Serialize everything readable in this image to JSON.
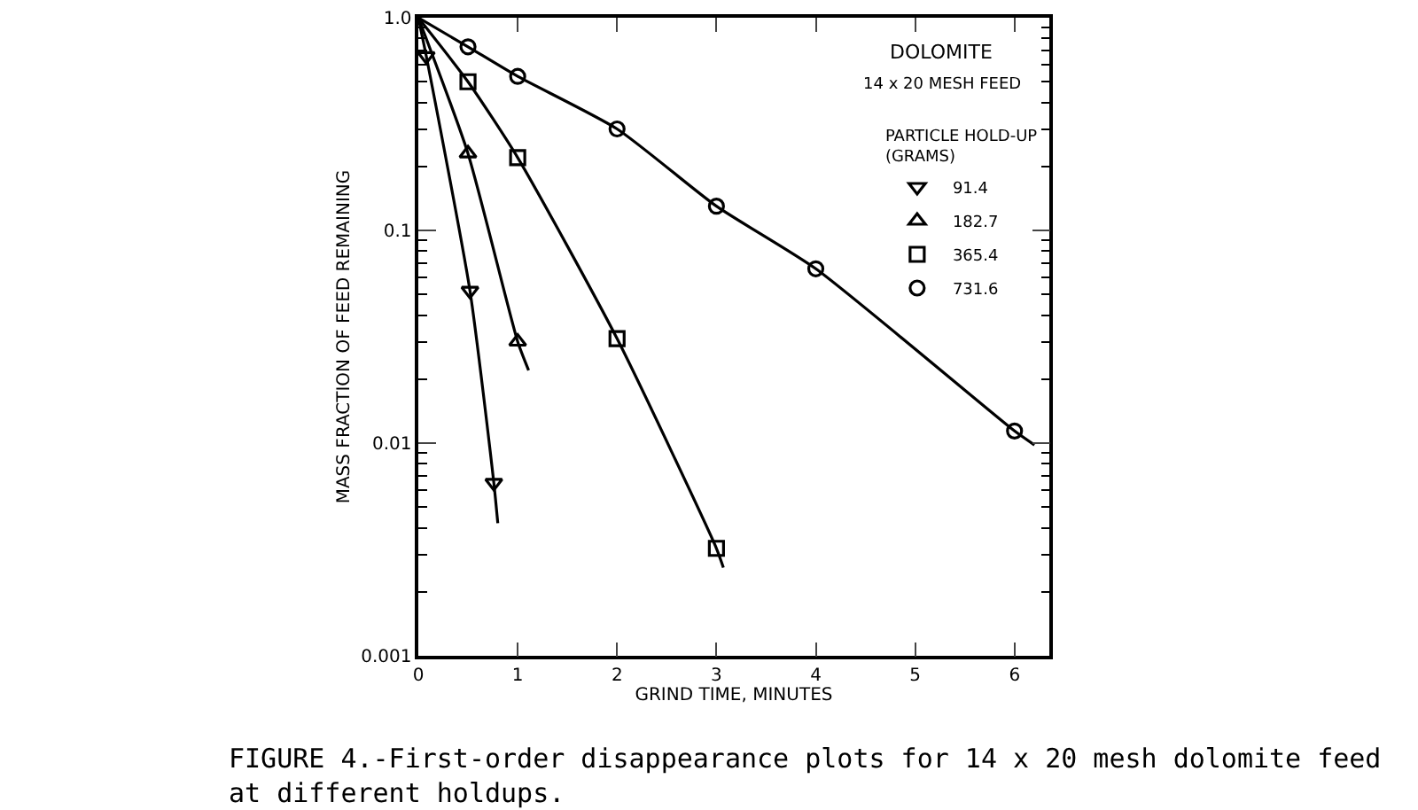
{
  "chart_data": {
    "type": "scatter",
    "title": "DOLOMITE",
    "subtitle": "14 x 20 MESH FEED",
    "legend_title": "PARTICLE HOLD-UP (GRAMS)",
    "xlabel": "GRIND TIME, MINUTES",
    "ylabel": "MASS FRACTION OF FEED REMAINING",
    "annotations": [
      "FIGURE 4.-First-order disappearance plots for 14 x 20 mesh dolomite feed at different holdups."
    ],
    "xlim": [
      0,
      6.35
    ],
    "xticks": [
      0,
      1,
      2,
      3,
      4,
      5,
      6
    ],
    "ylim": [
      0.001,
      1
    ],
    "yticks": [
      {
        "value": 0.001,
        "label": "0.001"
      },
      {
        "value": 0.01,
        "label": "0.01"
      },
      {
        "value": 0.1,
        "label": "0.1"
      },
      {
        "value": 1,
        "label": "1.0"
      }
    ],
    "log": "y",
    "legend": "top right",
    "series": [
      {
        "name": "91.4",
        "marker": "triangle-down",
        "color": "#000000",
        "x": [
          0.08,
          0.52,
          0.76
        ],
        "values": [
          0.66,
          0.052,
          0.0065
        ]
      },
      {
        "name": "182.7",
        "marker": "triangle",
        "color": "#000000",
        "x": [
          0.5,
          1.0
        ],
        "values": [
          0.23,
          0.03
        ]
      },
      {
        "name": "365.4",
        "marker": "square",
        "color": "#000000",
        "x": [
          0.5,
          1,
          2,
          3
        ],
        "values": [
          0.5,
          0.22,
          0.031,
          0.0032
        ]
      },
      {
        "name": "731.6",
        "marker": "circle",
        "color": "#000000",
        "x": [
          0.5,
          1,
          2,
          3,
          4,
          6
        ],
        "values": [
          0.73,
          0.53,
          0.3,
          0.13,
          0.066,
          0.0114
        ]
      },
      {
        "type": "line",
        "marker": "none",
        "color": "#000000",
        "x": [
          0,
          0.08,
          0.52,
          0.76,
          0.8
        ],
        "values": [
          1,
          0.66,
          0.052,
          0.0065,
          0.0042
        ]
      },
      {
        "type": "line",
        "marker": "none",
        "color": "#000000",
        "x": [
          0,
          0.5,
          1.0,
          1.11
        ],
        "values": [
          1,
          0.23,
          0.03,
          0.022
        ]
      },
      {
        "type": "line",
        "marker": "none",
        "color": "#000000",
        "x": [
          0,
          0.5,
          1,
          2,
          3,
          3.07
        ],
        "values": [
          1,
          0.5,
          0.22,
          0.031,
          0.0032,
          0.0026
        ]
      },
      {
        "type": "line",
        "marker": "none",
        "color": "#000000",
        "x": [
          0,
          0.5,
          1,
          2,
          3,
          4,
          6,
          6.2
        ],
        "values": [
          1,
          0.73,
          0.53,
          0.3,
          0.13,
          0.066,
          0.0114,
          0.0098
        ]
      }
    ]
  }
}
